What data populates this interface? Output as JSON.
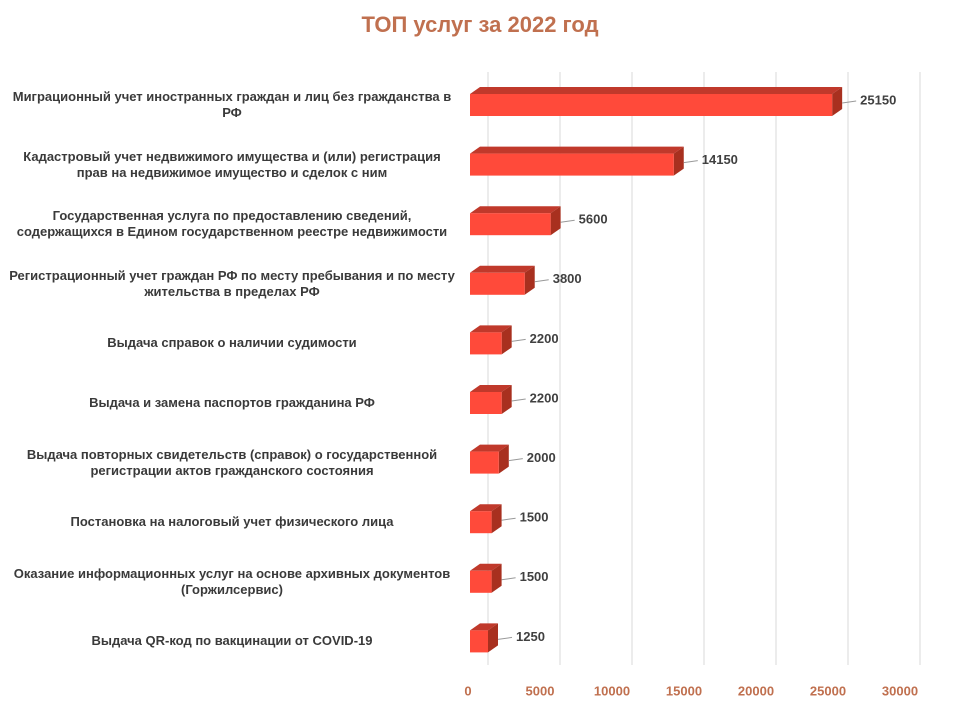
{
  "chart_data": {
    "type": "bar3d",
    "orientation": "horizontal",
    "title": "ТОП услуг за 2022 год",
    "categories": [
      "Миграционный учет иностранных граждан и лиц без гражданства в РФ",
      "Кадастровый учет недвижимого имущества и (или) регистрация прав на недвижимое имущество и сделок с ним",
      "Государственная услуга по предоставлению сведений, содержащихся в Едином государственном реестре недвижимости",
      "Регистрационный учет граждан РФ по месту пребывания и по месту жительства в пределах РФ",
      "Выдача справок о наличии судимости",
      "Выдача и замена паспортов гражданина РФ",
      "Выдача повторных свидетельств (справок) о государственной регистрации актов гражданского состояния",
      "Постановка на налоговый учет физического лица",
      "Оказание информационных услуг на основе архивных документов (Горжилсервис)",
      "Выдача QR-код по вакцинации от COVID-19"
    ],
    "values": [
      25150,
      14150,
      5600,
      3800,
      2200,
      2200,
      2000,
      1500,
      1500,
      1250
    ],
    "color": "#ff4a3a",
    "xlim": [
      0,
      30000
    ],
    "xticks": [
      0,
      5000,
      10000,
      15000,
      20000,
      25000,
      30000
    ],
    "grid": true
  }
}
